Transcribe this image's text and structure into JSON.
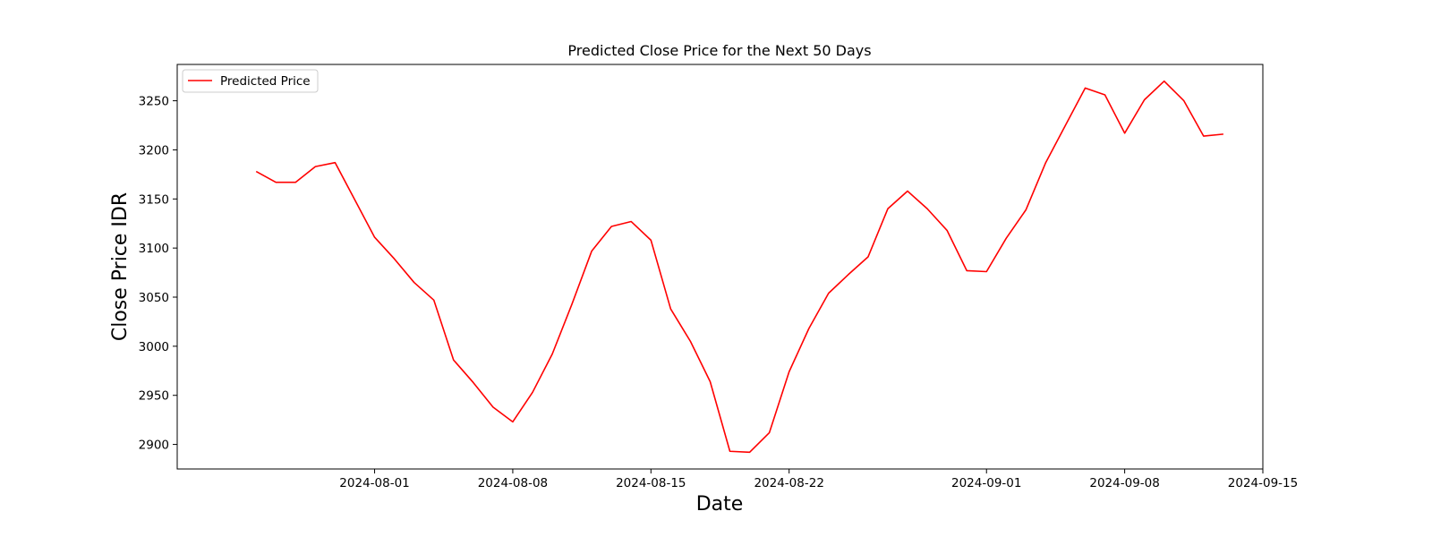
{
  "chart_data": {
    "type": "line",
    "title": "Predicted Close Price for the Next 50 Days",
    "xlabel": "Date",
    "ylabel": "Close Price IDR",
    "legend": {
      "placement": "top-left",
      "entries": [
        "Predicted Price"
      ]
    },
    "grid": false,
    "x_ticks": [
      "2024-08-01",
      "2024-08-08",
      "2024-08-15",
      "2024-08-22",
      "2024-09-01",
      "2024-09-08",
      "2024-09-15"
    ],
    "y_ticks": [
      2900,
      2950,
      3000,
      3050,
      3100,
      3150,
      3200,
      3250
    ],
    "xlim": [
      "2024-07-22",
      "2024-09-15"
    ],
    "ylim": [
      2875,
      3287
    ],
    "series": [
      {
        "name": "Predicted Price",
        "color": "#ff0000",
        "x": [
          "2024-07-26",
          "2024-07-27",
          "2024-07-28",
          "2024-07-29",
          "2024-07-30",
          "2024-07-31",
          "2024-08-01",
          "2024-08-02",
          "2024-08-03",
          "2024-08-04",
          "2024-08-05",
          "2024-08-06",
          "2024-08-07",
          "2024-08-08",
          "2024-08-09",
          "2024-08-10",
          "2024-08-11",
          "2024-08-12",
          "2024-08-13",
          "2024-08-14",
          "2024-08-15",
          "2024-08-16",
          "2024-08-17",
          "2024-08-18",
          "2024-08-19",
          "2024-08-20",
          "2024-08-21",
          "2024-08-22",
          "2024-08-23",
          "2024-08-24",
          "2024-08-25",
          "2024-08-26",
          "2024-08-27",
          "2024-08-28",
          "2024-08-29",
          "2024-08-30",
          "2024-08-31",
          "2024-09-01",
          "2024-09-02",
          "2024-09-03",
          "2024-09-04",
          "2024-09-05",
          "2024-09-06",
          "2024-09-07",
          "2024-09-08",
          "2024-09-09",
          "2024-09-10",
          "2024-09-11",
          "2024-09-12",
          "2024-09-13"
        ],
        "values": [
          3178,
          3167,
          3167,
          3183,
          3187,
          3149,
          3111,
          3089,
          3065,
          3047,
          2986,
          2963,
          2938,
          2923,
          2953,
          2992,
          3043,
          3097,
          3122,
          3127,
          3108,
          3038,
          3005,
          2964,
          2893,
          2892,
          2912,
          2974,
          3018,
          3054,
          3073,
          3091,
          3140,
          3158,
          3140,
          3118,
          3077,
          3076,
          3110,
          3139,
          3187,
          3225,
          3263,
          3256,
          3217,
          3251,
          3270,
          3250,
          3214,
          3216
        ]
      }
    ]
  }
}
